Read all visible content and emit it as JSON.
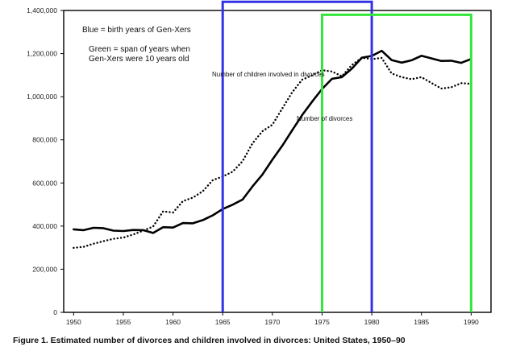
{
  "caption": "Figure 1. Estimated number of divorces and children involved in divorces: United States, 1950–90",
  "annotations": {
    "blue_note": "Blue = birth years of Gen-Xers",
    "green_note_line1": "Green = span of years when",
    "green_note_line2": "Gen-Xers were 10 years old",
    "children_label": "Number of children involved in divorces",
    "divorces_label": "Number of divorces"
  },
  "chart_data": {
    "type": "line",
    "xlim": [
      1949,
      1992
    ],
    "ylim": [
      0,
      1400000
    ],
    "x_ticks": [
      1950,
      1955,
      1960,
      1965,
      1970,
      1975,
      1980,
      1985,
      1990
    ],
    "y_ticks": [
      0,
      200000,
      400000,
      600000,
      800000,
      1000000,
      1200000,
      1400000
    ],
    "y_tick_labels": [
      "0",
      "200,000",
      "400,000",
      "600,000",
      "800,000",
      "1,000,000",
      "1,200,000",
      "1,400,000"
    ],
    "grid": false,
    "series": [
      {
        "name": "Number of divorces",
        "style": "solid",
        "color": "#000000",
        "x": [
          1950,
          1951,
          1952,
          1953,
          1954,
          1955,
          1956,
          1957,
          1958,
          1959,
          1960,
          1961,
          1962,
          1963,
          1964,
          1965,
          1966,
          1967,
          1968,
          1969,
          1970,
          1971,
          1972,
          1973,
          1974,
          1975,
          1976,
          1977,
          1978,
          1979,
          1980,
          1981,
          1982,
          1983,
          1984,
          1985,
          1986,
          1987,
          1988,
          1989,
          1990
        ],
        "values": [
          385000,
          381000,
          392000,
          390000,
          379000,
          377000,
          382000,
          381000,
          368000,
          395000,
          393000,
          414000,
          413000,
          428000,
          450000,
          479000,
          499000,
          523000,
          584000,
          639000,
          708000,
          773000,
          845000,
          915000,
          977000,
          1036000,
          1083000,
          1091000,
          1130000,
          1181000,
          1189000,
          1213000,
          1170000,
          1158000,
          1169000,
          1190000,
          1178000,
          1166000,
          1167000,
          1157000,
          1175000
        ]
      },
      {
        "name": "Number of children involved in divorces",
        "style": "dotted",
        "color": "#000000",
        "x": [
          1950,
          1951,
          1952,
          1953,
          1954,
          1955,
          1956,
          1957,
          1958,
          1959,
          1960,
          1961,
          1962,
          1963,
          1964,
          1965,
          1966,
          1967,
          1968,
          1969,
          1970,
          1971,
          1972,
          1973,
          1974,
          1975,
          1976,
          1977,
          1978,
          1979,
          1980,
          1981,
          1982,
          1983,
          1984,
          1985,
          1986,
          1987,
          1988,
          1989,
          1990
        ],
        "values": [
          299000,
          304000,
          318000,
          330000,
          341000,
          347000,
          361000,
          379000,
          398000,
          468000,
          463000,
          516000,
          532000,
          562000,
          613000,
          630000,
          652000,
          701000,
          784000,
          840000,
          870000,
          946000,
          1021000,
          1079000,
          1099000,
          1123000,
          1117000,
          1095000,
          1147000,
          1181000,
          1174000,
          1180000,
          1108000,
          1091000,
          1081000,
          1091000,
          1064000,
          1038000,
          1044000,
          1063000,
          1060000
        ]
      }
    ],
    "overlays": [
      {
        "name": "birth years of Gen-Xers",
        "color": "#3232e6",
        "x_start": 1965,
        "x_end": 1980,
        "y_top": 1440000
      },
      {
        "name": "span of years when Gen-Xers were 10 years old",
        "color": "#33e63a",
        "x_start": 1975,
        "x_end": 1990,
        "y_top": 1380000
      }
    ]
  }
}
